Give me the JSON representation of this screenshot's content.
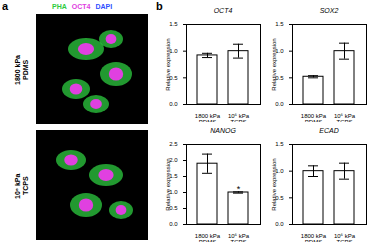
{
  "panel_a": {
    "label": "a",
    "stain_legend": [
      {
        "text": "PHA",
        "color": "#2ecc40"
      },
      {
        "text": "OCT4",
        "color": "#e040e0"
      },
      {
        "text": "DAPI",
        "color": "#3050ff"
      }
    ],
    "row_labels": [
      "1800 kPa\nPDMS",
      "10⁶ kPa\nTCPS"
    ]
  },
  "panel_b_label": "b",
  "chart_data": [
    {
      "type": "bar",
      "title": "OCT4",
      "categories": [
        "1800 kPa\nPDMS",
        "10⁶ kPa\nTCPS"
      ],
      "values": [
        0.92,
        1.0
      ],
      "errors": [
        0.04,
        0.13
      ],
      "ylabel": "Relative expression",
      "ylim": [
        0,
        1.5
      ],
      "yticks": [
        {
          "value": 0,
          "label": "0.0"
        },
        {
          "value": 0.5,
          "label": "0.5"
        },
        {
          "value": 1,
          "label": "1.0"
        },
        {
          "value": 1.5,
          "label": "1.5"
        }
      ],
      "color": "#ffffff"
    },
    {
      "type": "bar",
      "title": "SOX2",
      "categories": [
        "1800 kPa\nPDMS",
        "10⁶ kPa\nTCPS"
      ],
      "values": [
        0.52,
        1.0
      ],
      "errors": [
        0.02,
        0.15
      ],
      "ylabel": "Relative expression",
      "ylim": [
        0,
        1.5
      ],
      "yticks": [
        {
          "value": 0,
          "label": "0.0"
        },
        {
          "value": 0.5,
          "label": "0.5"
        },
        {
          "value": 1,
          "label": "1.0"
        },
        {
          "value": 1.5,
          "label": "1.5"
        }
      ],
      "color": "#ffffff"
    },
    {
      "type": "bar",
      "title": "NANOG",
      "categories": [
        "1800 kPa\nPDMS",
        "10⁶ kPa\nTCPS"
      ],
      "values": [
        1.9,
        1.0
      ],
      "errors": [
        0.3,
        0.02
      ],
      "ylabel": "Relative expression",
      "ylim": [
        0,
        2.5
      ],
      "yticks": [
        {
          "value": 0,
          "label": "0.0"
        },
        {
          "value": 0.5,
          "label": "0.5"
        },
        {
          "value": 1,
          "label": "1.0"
        },
        {
          "value": 1.5,
          "label": "1.5"
        },
        {
          "value": 2,
          "label": "2.0"
        },
        {
          "value": 2.5,
          "label": "2.5"
        }
      ],
      "color": "#ffffff",
      "annotations": [
        {
          "category": "10⁶ kPa\nTCPS",
          "text": "*"
        }
      ]
    },
    {
      "type": "bar",
      "title": "ECAD",
      "categories": [
        "1800 kPa\nPDMS",
        "10⁶ kPa\nTCPS"
      ],
      "values": [
        1.0,
        1.0
      ],
      "errors": [
        0.1,
        0.15
      ],
      "ylabel": "Relative expression",
      "ylim": [
        0,
        1.5
      ],
      "yticks": [
        {
          "value": 0,
          "label": "0.0"
        },
        {
          "value": 0.5,
          "label": "0.5"
        },
        {
          "value": 1,
          "label": "1.0"
        },
        {
          "value": 1.5,
          "label": "1.5"
        }
      ],
      "color": "#ffffff"
    }
  ]
}
